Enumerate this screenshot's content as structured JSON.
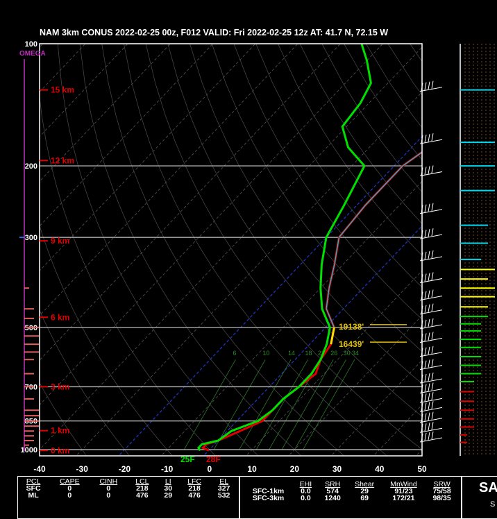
{
  "title": "NAM 3km CONUS 2022-02-25 00z, F012  VALID: Fri 2022-02-25 12z  AT: 41.7 N, 72.15 W",
  "omega_label": "OMEGA",
  "chart_data": {
    "type": "line",
    "title": "NAM 3km CONUS 2022-02-25 00z, F012  VALID: Fri 2022-02-25 12z  AT: 41.7 N, 72.15 W",
    "xlabel": "",
    "ylabel": "",
    "xlim": [
      -40,
      50
    ],
    "ylim_pressure": [
      1000,
      100
    ],
    "pressure_scale": "log",
    "x_ticks": [
      -40,
      -30,
      -20,
      -10,
      0,
      10,
      20,
      30,
      40,
      50
    ],
    "pressure_levels": [
      100,
      200,
      300,
      500,
      700,
      850,
      1000
    ],
    "height_labels": [
      {
        "label": "15 km",
        "p": 130
      },
      {
        "label": "12 km",
        "p": 194
      },
      {
        "label": "9 km",
        "p": 306
      },
      {
        "label": "6 km",
        "p": 472
      },
      {
        "label": "3 km",
        "p": 700
      },
      {
        "label": "1 km",
        "p": 898
      },
      {
        "label": "0 km",
        "p": 1005
      }
    ],
    "mixing_ratio_labels": [
      "6",
      "10",
      "14",
      "18",
      "22",
      "26",
      "30",
      "34"
    ],
    "series": [
      {
        "name": "Temperature",
        "color": "#e00000",
        "points": [
          [
            0,
            1005
          ],
          [
            -2,
            990
          ],
          [
            -2,
            970
          ],
          [
            0,
            950
          ],
          [
            3,
            900
          ],
          [
            6,
            850
          ],
          [
            6,
            800
          ],
          [
            6,
            750
          ],
          [
            7,
            700
          ],
          [
            8,
            650
          ],
          [
            6,
            600
          ],
          [
            5,
            550
          ],
          [
            2,
            500
          ],
          [
            -4,
            450
          ],
          [
            -8,
            400
          ],
          [
            -12,
            350
          ],
          [
            -17,
            300
          ],
          [
            -18,
            250
          ],
          [
            -18,
            200
          ],
          [
            -16,
            180
          ],
          [
            -17,
            160
          ],
          [
            -22,
            140
          ],
          [
            -27,
            125
          ],
          [
            -33,
            110
          ],
          [
            -38,
            100
          ]
        ]
      },
      {
        "name": "Dewpoint",
        "color": "#00e000",
        "points": [
          [
            -2,
            1005
          ],
          [
            -3,
            990
          ],
          [
            -3,
            970
          ],
          [
            0,
            950
          ],
          [
            1,
            900
          ],
          [
            5,
            850
          ],
          [
            6,
            800
          ],
          [
            6,
            750
          ],
          [
            7,
            700
          ],
          [
            7,
            650
          ],
          [
            6,
            600
          ],
          [
            4,
            550
          ],
          [
            1,
            500
          ],
          [
            -5,
            450
          ],
          [
            -10,
            400
          ],
          [
            -15,
            350
          ],
          [
            -20,
            300
          ],
          [
            -23,
            250
          ],
          [
            -27,
            200
          ],
          [
            -35,
            180
          ],
          [
            -41,
            160
          ],
          [
            -42,
            140
          ],
          [
            -44,
            125
          ],
          [
            -50,
            110
          ],
          [
            -55,
            100
          ]
        ]
      },
      {
        "name": "Wetbulb",
        "color": "#00c8e8",
        "points": [
          [
            2,
            500
          ],
          [
            -4,
            450
          ],
          [
            -8,
            400
          ],
          [
            -12,
            350
          ],
          [
            -17,
            300
          ],
          [
            -18,
            250
          ],
          [
            -18,
            200
          ],
          [
            -16,
            180
          ],
          [
            -17,
            160
          ],
          [
            -23,
            140
          ],
          [
            -28,
            125
          ],
          [
            -34,
            110
          ],
          [
            -39,
            100
          ]
        ]
      }
    ],
    "annotations": [
      {
        "label": "19138'",
        "p": 498,
        "x": 31
      },
      {
        "label": "16439'",
        "p": 550,
        "x": 31
      },
      {
        "label": "25F",
        "p": 1030,
        "x": -8
      },
      {
        "label": "28F",
        "p": 1030,
        "x": 0
      }
    ],
    "wind_barbs": [
      130,
      175,
      210,
      260,
      300,
      340,
      385,
      425,
      460,
      500,
      540,
      585,
      630,
      680,
      720,
      760,
      800,
      850,
      900,
      950
    ],
    "omega_bars": [
      {
        "p": 300,
        "value": -1
      },
      {
        "p": 400,
        "value": 1
      },
      {
        "p": 450,
        "value": 2
      },
      {
        "p": 475,
        "value": 2
      },
      {
        "p": 500,
        "value": 3
      },
      {
        "p": 525,
        "value": 3
      },
      {
        "p": 550,
        "value": 3
      },
      {
        "p": 575,
        "value": 3
      },
      {
        "p": 600,
        "value": 2
      },
      {
        "p": 650,
        "value": 2
      },
      {
        "p": 700,
        "value": 2
      },
      {
        "p": 750,
        "value": 2
      },
      {
        "p": 800,
        "value": 3
      },
      {
        "p": 825,
        "value": 3
      },
      {
        "p": 850,
        "value": 3
      },
      {
        "p": 875,
        "value": 3
      },
      {
        "p": 900,
        "value": 2
      },
      {
        "p": 925,
        "value": 2
      },
      {
        "p": 950,
        "value": 2
      },
      {
        "p": 975,
        "value": 1
      }
    ],
    "side_bars": [
      {
        "p": 130,
        "color": "#00d8f0",
        "value": 5
      },
      {
        "p": 175,
        "color": "#00d8f0",
        "value": 5
      },
      {
        "p": 200,
        "color": "#00d8f0",
        "value": 5
      },
      {
        "p": 230,
        "color": "#00d8f0",
        "value": 5
      },
      {
        "p": 280,
        "color": "#00d8f0",
        "value": 4
      },
      {
        "p": 310,
        "color": "#00d8f0",
        "value": 4
      },
      {
        "p": 340,
        "color": "#00d8f0",
        "value": 3
      },
      {
        "p": 360,
        "color": "#ffff00",
        "value": 5
      },
      {
        "p": 380,
        "color": "#ffff00",
        "value": 4
      },
      {
        "p": 400,
        "color": "#ffff00",
        "value": 5
      },
      {
        "p": 420,
        "color": "#ffff00",
        "value": 5
      },
      {
        "p": 445,
        "color": "#ffff00",
        "value": 4
      },
      {
        "p": 470,
        "color": "#00e000",
        "value": 4
      },
      {
        "p": 490,
        "color": "#00e000",
        "value": 3
      },
      {
        "p": 510,
        "color": "#00e000",
        "value": 3
      },
      {
        "p": 535,
        "color": "#00e000",
        "value": 3
      },
      {
        "p": 560,
        "color": "#00e000",
        "value": 3
      },
      {
        "p": 590,
        "color": "#00e000",
        "value": 3
      },
      {
        "p": 620,
        "color": "#00e000",
        "value": 3
      },
      {
        "p": 650,
        "color": "#00e000",
        "value": 3
      },
      {
        "p": 680,
        "color": "#00e000",
        "value": 2
      },
      {
        "p": 720,
        "color": "#e00000",
        "value": 2
      },
      {
        "p": 760,
        "color": "#e00000",
        "value": 2
      },
      {
        "p": 800,
        "color": "#e00000",
        "value": 2
      },
      {
        "p": 840,
        "color": "#e00000",
        "value": 2
      },
      {
        "p": 880,
        "color": "#e00000",
        "value": 2
      },
      {
        "p": 920,
        "color": "#e00000",
        "value": 1
      },
      {
        "p": 960,
        "color": "#e00000",
        "value": 1
      }
    ]
  },
  "params_table": {
    "headers": [
      "PCL",
      "CAPE",
      "CINH",
      "LCL",
      "LI",
      "LFC",
      "EL"
    ],
    "rows": [
      [
        "SFC",
        "0",
        "0",
        "218",
        "30",
        "218",
        "327"
      ],
      [
        "ML",
        "0",
        "0",
        "476",
        "29",
        "476",
        "532"
      ]
    ]
  },
  "kinematic_table": {
    "headers": [
      "",
      "EHI",
      "SRH",
      "Shear",
      "MnWind",
      "SRW"
    ],
    "rows": [
      [
        "SFC-1km",
        "0.0",
        "574",
        "29",
        "91/23",
        "75/58"
      ],
      [
        "SFC-3km",
        "0.0",
        "1240",
        "69",
        "172/21",
        "98/35"
      ]
    ]
  },
  "side_text": "SA",
  "side_sub": "S"
}
